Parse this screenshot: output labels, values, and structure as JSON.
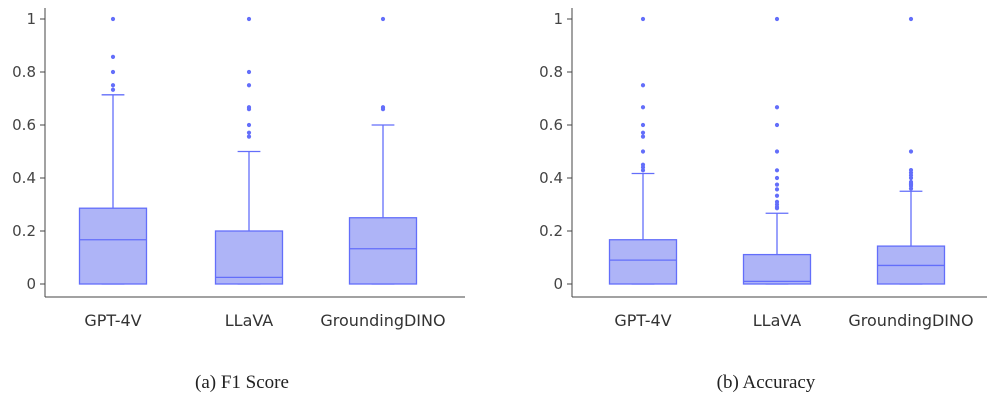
{
  "colors": {
    "box_fill": "#aeb4f7",
    "box_stroke": "#636efa",
    "outlier": "#636efa",
    "axis": "#444444"
  },
  "captions": {
    "a": "(a) F1 Score",
    "b": "(b) Accuracy"
  },
  "chart_data": [
    {
      "type": "box",
      "title": "",
      "xlabel": "",
      "ylabel": "",
      "ylim": [
        0,
        1
      ],
      "yticks": [
        0,
        0.2,
        0.4,
        0.6,
        0.8,
        1
      ],
      "ytick_labels": [
        "0",
        "0.2",
        "0.4",
        "0.6",
        "0.8",
        "1"
      ],
      "grid": false,
      "categories": [
        "GPT-4V",
        "LLaVA",
        "GroundingDINO"
      ],
      "boxes": [
        {
          "q1": 0,
          "median": 0.167,
          "q3": 0.286,
          "lower_whisker": 0,
          "upper_whisker": 0.714,
          "outliers": [
            0.733,
            0.75,
            0.8,
            0.857,
            1
          ]
        },
        {
          "q1": 0,
          "median": 0.025,
          "q3": 0.2,
          "lower_whisker": 0,
          "upper_whisker": 0.5,
          "outliers": [
            0.556,
            0.571,
            0.6,
            0.66,
            0.667,
            0.75,
            0.8,
            1
          ]
        },
        {
          "q1": 0,
          "median": 0.133,
          "q3": 0.25,
          "lower_whisker": 0,
          "upper_whisker": 0.6,
          "outliers": [
            0.66,
            0.667,
            1
          ]
        }
      ]
    },
    {
      "type": "box",
      "title": "",
      "xlabel": "",
      "ylabel": "",
      "ylim": [
        0,
        1
      ],
      "yticks": [
        0,
        0.2,
        0.4,
        0.6,
        0.8,
        1
      ],
      "ytick_labels": [
        "0",
        "0.2",
        "0.4",
        "0.6",
        "0.8",
        "1"
      ],
      "grid": false,
      "categories": [
        "GPT-4V",
        "LLaVA",
        "GroundingDINO"
      ],
      "boxes": [
        {
          "q1": 0,
          "median": 0.09,
          "q3": 0.167,
          "lower_whisker": 0,
          "upper_whisker": 0.417,
          "outliers": [
            0.429,
            0.44,
            0.45,
            0.5,
            0.556,
            0.571,
            0.6,
            0.667,
            0.75,
            1
          ]
        },
        {
          "q1": 0,
          "median": 0.01,
          "q3": 0.111,
          "lower_whisker": 0,
          "upper_whisker": 0.267,
          "outliers": [
            0.286,
            0.29,
            0.3,
            0.31,
            0.333,
            0.357,
            0.375,
            0.4,
            0.429,
            0.5,
            0.6,
            0.667,
            1
          ]
        },
        {
          "q1": 0,
          "median": 0.07,
          "q3": 0.143,
          "lower_whisker": 0,
          "upper_whisker": 0.35,
          "outliers": [
            0.36,
            0.37,
            0.375,
            0.38,
            0.385,
            0.4,
            0.41,
            0.42,
            0.43,
            0.5,
            1
          ]
        }
      ]
    }
  ]
}
